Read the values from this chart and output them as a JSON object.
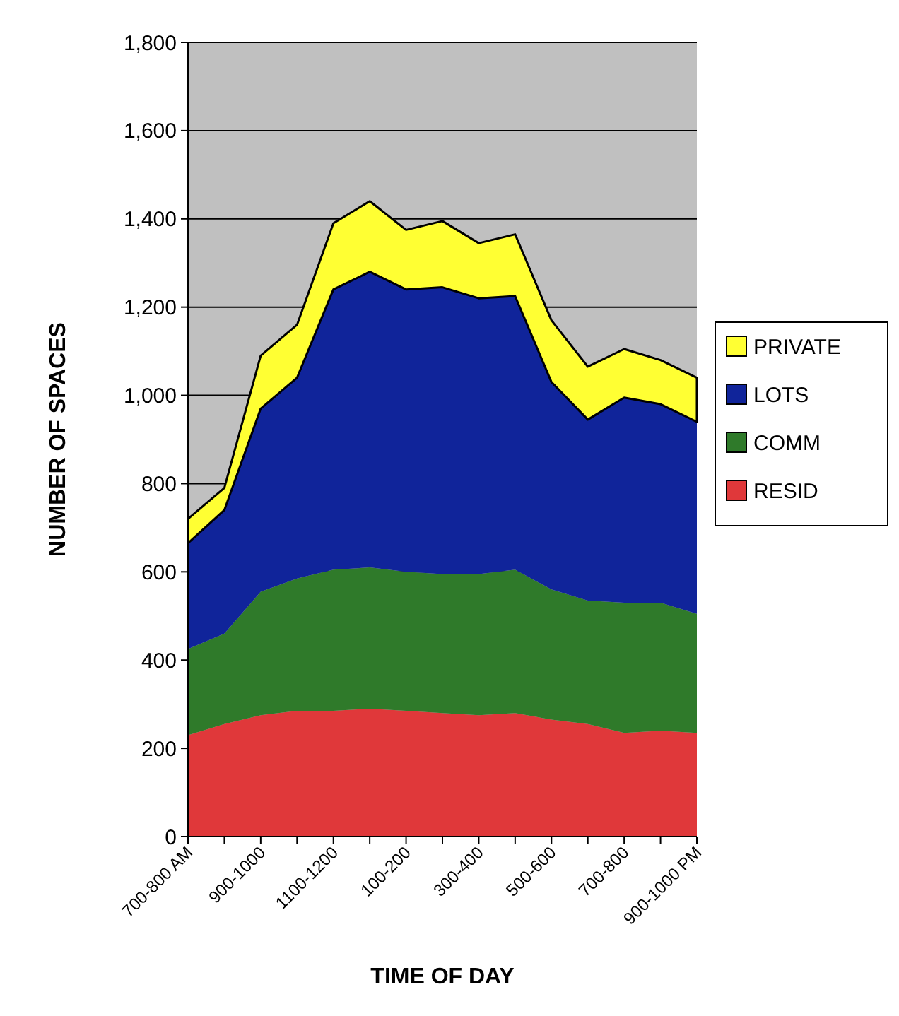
{
  "chart_data": {
    "type": "area",
    "stacked": true,
    "xlabel": "TIME OF DAY",
    "ylabel": "NUMBER OF SPACES",
    "categories": [
      "700-800 AM",
      null,
      "900-1000",
      null,
      "1100-1200",
      null,
      "100-200",
      null,
      "300-400",
      null,
      "500-600",
      null,
      "700-800",
      null,
      "900-1000 PM"
    ],
    "series": [
      {
        "name": "RESID",
        "color": "#e0383a",
        "values": [
          230,
          255,
          275,
          285,
          285,
          290,
          285,
          280,
          275,
          280,
          265,
          255,
          235,
          240,
          235
        ]
      },
      {
        "name": "COMM",
        "color": "#2f7a2a",
        "values": [
          195,
          205,
          280,
          300,
          320,
          320,
          315,
          315,
          320,
          325,
          295,
          280,
          295,
          290,
          270
        ]
      },
      {
        "name": "LOTS",
        "color": "#10249a",
        "values": [
          240,
          280,
          415,
          455,
          635,
          670,
          640,
          650,
          625,
          620,
          470,
          410,
          465,
          450,
          435
        ]
      },
      {
        "name": "PRIVATE",
        "color": "#ffff33",
        "values": [
          55,
          50,
          120,
          120,
          150,
          160,
          135,
          150,
          125,
          140,
          140,
          120,
          110,
          100,
          100
        ]
      }
    ],
    "ylim": [
      0,
      1800
    ],
    "yticks": [
      0,
      200,
      400,
      600,
      800,
      {
        "value": 1000,
        "label": "1,000"
      },
      {
        "value": 1200,
        "label": "1,200"
      },
      {
        "value": 1400,
        "label": "1,400"
      },
      {
        "value": 1600,
        "label": "1,600"
      },
      {
        "value": 1800,
        "label": "1,800"
      }
    ],
    "grid": "y",
    "legend": "right"
  }
}
